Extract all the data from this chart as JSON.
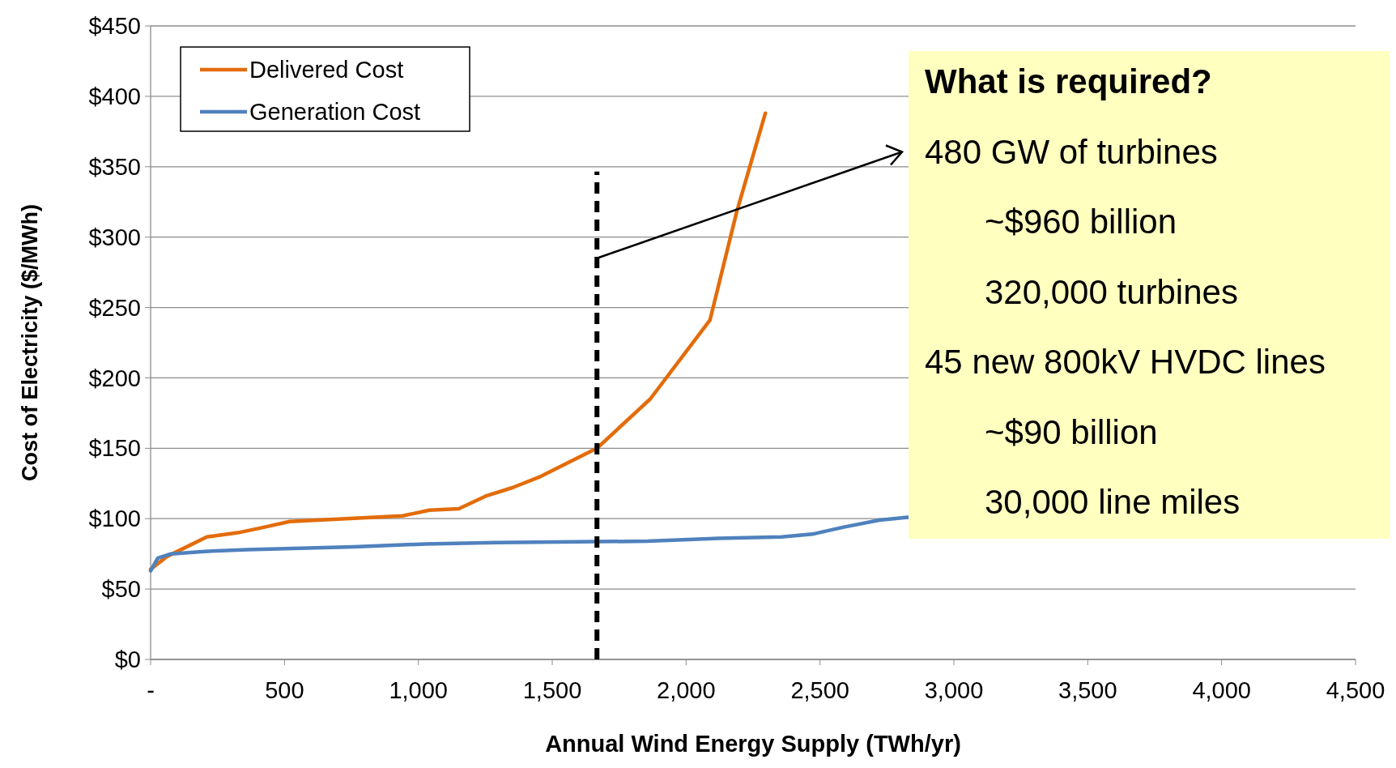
{
  "chart_data": {
    "type": "line",
    "xlabel": "Annual Wind Energy Supply (TWh/yr)",
    "ylabel": "Cost of Electricity ($/MWh)",
    "xlim": [
      0,
      4500
    ],
    "xticks": [
      {
        "value": 0,
        "label": "-"
      },
      500,
      {
        "value": 1000,
        "label": "1,000"
      },
      {
        "value": 1500,
        "label": "1,500"
      },
      {
        "value": 2000,
        "label": "2,000"
      },
      {
        "value": 2500,
        "label": "2,500"
      },
      {
        "value": 3000,
        "label": "3,000"
      },
      {
        "value": 3500,
        "label": "3,500"
      },
      {
        "value": 4000,
        "label": "4,000"
      },
      {
        "value": 4500,
        "label": "4,500"
      }
    ],
    "ylim": [
      0,
      450
    ],
    "yticks": [
      {
        "value": 0,
        "label": "$0"
      },
      {
        "value": 50,
        "label": "$50"
      },
      {
        "value": 100,
        "label": "$100"
      },
      {
        "value": 150,
        "label": "$150"
      },
      {
        "value": 200,
        "label": "$200"
      },
      {
        "value": 250,
        "label": "$250"
      },
      {
        "value": 300,
        "label": "$300"
      },
      {
        "value": 350,
        "label": "$350"
      },
      {
        "value": 400,
        "label": "$400"
      },
      {
        "value": 450,
        "label": "$450"
      }
    ],
    "grid": "y",
    "legend": "top left",
    "marker": "none",
    "line_style": "solid",
    "series": [
      {
        "name": "Delivered Cost",
        "color": "#e36c0a",
        "x": [
          0,
          60,
          210,
          326,
          426,
          519,
          941,
          1041,
          1151,
          1251,
          1351,
          1457,
          1667,
          1866,
          2089,
          2189,
          2296
        ],
        "values": [
          64,
          73,
          87,
          90,
          94,
          98,
          102,
          106,
          107,
          116,
          122,
          130,
          150,
          185,
          241,
          318,
          388
        ]
      },
      {
        "name": "Generation Cost",
        "color": "#4f81bd",
        "x": [
          0,
          27,
          76,
          226,
          359,
          758,
          1025,
          1290,
          1856,
          2122,
          2356,
          2472,
          2589,
          2722,
          2828
        ],
        "values": [
          63,
          72,
          75,
          77,
          78,
          80,
          82,
          83,
          84,
          86,
          87,
          89,
          94,
          99,
          101
        ]
      }
    ],
    "ref_lines": [
      {
        "axis": "x",
        "value": 1667,
        "color": "#000000",
        "line_style": "dashed"
      }
    ],
    "annotations": [
      "What is required?",
      {
        "text": "480 GW of turbines",
        "x": 1667,
        "y": 285
      },
      "~$960 billion",
      "320,000 turbines",
      "45 new 800kV HVDC lines",
      "~$90 billion",
      "30,000 line miles"
    ]
  }
}
